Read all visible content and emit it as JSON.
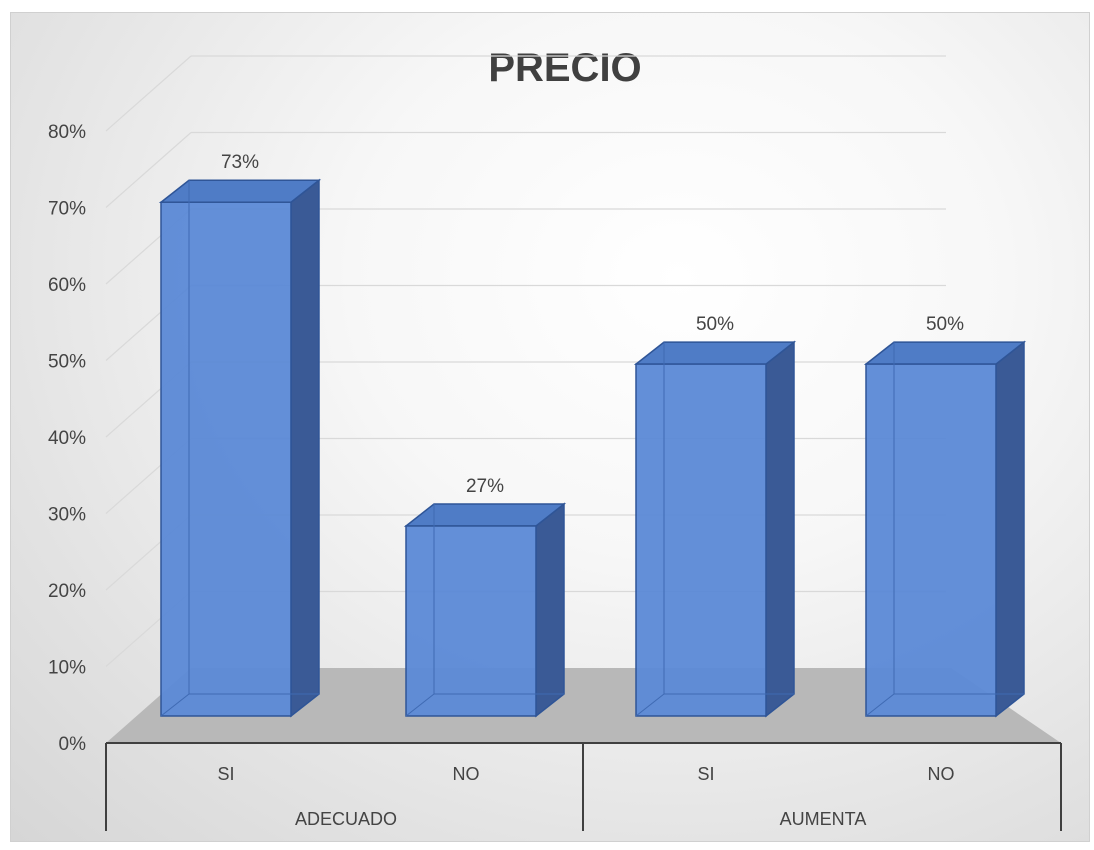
{
  "chart_data": {
    "type": "bar",
    "title": "PRECIO",
    "xlabel": "",
    "ylabel": "",
    "ylim": [
      0,
      0.8
    ],
    "y_ticks": [
      "0%",
      "10%",
      "20%",
      "30%",
      "40%",
      "50%",
      "60%",
      "70%",
      "80%"
    ],
    "y_tick_values": [
      0,
      0.1,
      0.2,
      0.3,
      0.4,
      0.5,
      0.6,
      0.7,
      0.8
    ],
    "categories": [
      "SI",
      "NO",
      "SI",
      "NO"
    ],
    "groups": [
      "ADECUADO",
      "AUMENTA"
    ],
    "group_of_category": [
      0,
      0,
      1,
      1
    ],
    "values": [
      0.73,
      0.27,
      0.5,
      0.5
    ],
    "data_labels": [
      "73%",
      "27%",
      "50%",
      "50%"
    ],
    "grid": true,
    "legend": "none",
    "style": "3d-column",
    "colors": {
      "bar_front": "#5b89d6",
      "bar_side": "#3a5a96",
      "bar_edge": "#2f5597",
      "floor": "#b8b8b8",
      "gridline": "#d9d9d9",
      "text": "#444444",
      "title": "#404040"
    }
  }
}
